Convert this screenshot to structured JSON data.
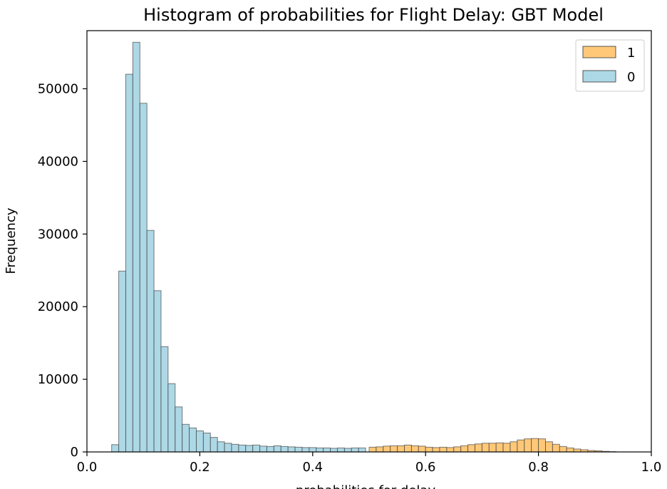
{
  "chart_data": {
    "type": "bar",
    "title": "Histogram of probabilities for Flight Delay: GBT Model",
    "xlabel": "probabilities for delay",
    "ylabel": "Frequency",
    "xlim": [
      0.0,
      1.0
    ],
    "ylim": [
      0,
      58000
    ],
    "bin_width": 0.0125,
    "x_ticks": [
      "0.0",
      "0.2",
      "0.4",
      "0.6",
      "0.8",
      "1.0"
    ],
    "y_ticks": [
      "0",
      "10000",
      "20000",
      "30000",
      "40000",
      "50000"
    ],
    "grid": false,
    "legend_position": "top-right",
    "legend": [
      "1",
      "0"
    ],
    "series": [
      {
        "name": "0",
        "color": "#add8e6",
        "bin_starts": [
          0.0438,
          0.0563,
          0.0688,
          0.0813,
          0.0938,
          0.1063,
          0.1188,
          0.1313,
          0.1438,
          0.1563,
          0.1688,
          0.1813,
          0.1938,
          0.2063,
          0.2188,
          0.2313,
          0.2438,
          0.2563,
          0.2688,
          0.2813,
          0.2938,
          0.3063,
          0.3188,
          0.3313,
          0.3438,
          0.3563,
          0.3688,
          0.3813,
          0.3938,
          0.4063,
          0.4188,
          0.4313,
          0.4438,
          0.4563,
          0.4688,
          0.4813
        ],
        "values": [
          1000,
          24900,
          52000,
          56400,
          48000,
          30500,
          22200,
          14500,
          9400,
          6200,
          3800,
          3300,
          2900,
          2600,
          2000,
          1400,
          1200,
          1050,
          950,
          900,
          950,
          800,
          750,
          850,
          750,
          700,
          650,
          600,
          600,
          550,
          550,
          500,
          550,
          500,
          550,
          550
        ]
      },
      {
        "name": "1",
        "color": "#ffc878",
        "bin_starts": [
          0.5,
          0.5125,
          0.525,
          0.5375,
          0.55,
          0.5625,
          0.575,
          0.5875,
          0.6,
          0.6125,
          0.625,
          0.6375,
          0.65,
          0.6625,
          0.675,
          0.6875,
          0.7,
          0.7125,
          0.725,
          0.7375,
          0.75,
          0.7625,
          0.775,
          0.7875,
          0.8,
          0.8125,
          0.825,
          0.8375,
          0.85,
          0.8625,
          0.875,
          0.8875,
          0.9,
          0.9125,
          0.925
        ],
        "values": [
          650,
          700,
          800,
          850,
          850,
          950,
          850,
          800,
          650,
          600,
          650,
          600,
          700,
          850,
          1000,
          1100,
          1200,
          1200,
          1250,
          1200,
          1400,
          1650,
          1800,
          1850,
          1800,
          1400,
          1050,
          750,
          550,
          400,
          300,
          200,
          150,
          80,
          40
        ]
      }
    ]
  }
}
